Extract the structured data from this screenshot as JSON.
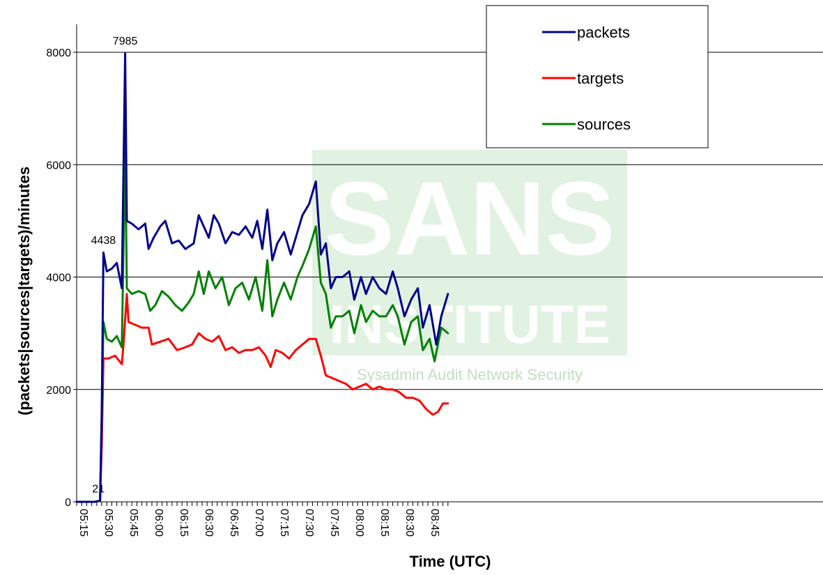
{
  "chart_data": {
    "type": "line",
    "title": "",
    "xlabel": "Time (UTC)",
    "ylabel": "(packets|sources|targets)/minutes",
    "ylim": [
      0,
      8000
    ],
    "yticks": [
      0,
      2000,
      4000,
      6000,
      8000
    ],
    "xlim": [
      "05:15",
      "08:57"
    ],
    "xticks": [
      "05:15",
      "05:30",
      "05:45",
      "06:00",
      "06:15",
      "06:30",
      "06:45",
      "07:00",
      "07:15",
      "07:30",
      "07:45",
      "08:00",
      "08:15",
      "08:30",
      "08:45"
    ],
    "grid": "horizontal",
    "legend_position": "top-right",
    "series": [
      {
        "name": "packets",
        "color": "#00008b",
        "points": [
          [
            "05:15",
            0
          ],
          [
            "05:26",
            0
          ],
          [
            "05:29",
            21
          ],
          [
            "05:30",
            1600
          ],
          [
            "05:31",
            4438
          ],
          [
            "05:33",
            4100
          ],
          [
            "05:36",
            4150
          ],
          [
            "05:39",
            4250
          ],
          [
            "05:42",
            3800
          ],
          [
            "05:44",
            7985
          ],
          [
            "05:45",
            5000
          ],
          [
            "05:48",
            4950
          ],
          [
            "05:52",
            4850
          ],
          [
            "05:56",
            4950
          ],
          [
            "05:58",
            4500
          ],
          [
            "06:01",
            4700
          ],
          [
            "06:05",
            4900
          ],
          [
            "06:08",
            5000
          ],
          [
            "06:12",
            4600
          ],
          [
            "06:16",
            4650
          ],
          [
            "06:20",
            4500
          ],
          [
            "06:25",
            4600
          ],
          [
            "06:28",
            5100
          ],
          [
            "06:31",
            4900
          ],
          [
            "06:34",
            4700
          ],
          [
            "06:37",
            5100
          ],
          [
            "06:40",
            4950
          ],
          [
            "06:44",
            4600
          ],
          [
            "06:48",
            4800
          ],
          [
            "06:52",
            4750
          ],
          [
            "06:56",
            4900
          ],
          [
            "07:00",
            4700
          ],
          [
            "07:03",
            5000
          ],
          [
            "07:06",
            4500
          ],
          [
            "07:09",
            5200
          ],
          [
            "07:12",
            4300
          ],
          [
            "07:15",
            4600
          ],
          [
            "07:19",
            4800
          ],
          [
            "07:23",
            4400
          ],
          [
            "07:27",
            4800
          ],
          [
            "07:30",
            5100
          ],
          [
            "07:34",
            5300
          ],
          [
            "07:38",
            5700
          ],
          [
            "07:41",
            4400
          ],
          [
            "07:44",
            4600
          ],
          [
            "07:47",
            3800
          ],
          [
            "07:50",
            4000
          ],
          [
            "07:54",
            4000
          ],
          [
            "07:58",
            4100
          ],
          [
            "08:01",
            3600
          ],
          [
            "08:05",
            4000
          ],
          [
            "08:08",
            3700
          ],
          [
            "08:12",
            4000
          ],
          [
            "08:16",
            3800
          ],
          [
            "08:20",
            3700
          ],
          [
            "08:24",
            4100
          ],
          [
            "08:27",
            3800
          ],
          [
            "08:31",
            3300
          ],
          [
            "08:35",
            3600
          ],
          [
            "08:39",
            3800
          ],
          [
            "08:42",
            3100
          ],
          [
            "08:46",
            3500
          ],
          [
            "08:50",
            2800
          ],
          [
            "08:53",
            3300
          ],
          [
            "08:57",
            3700
          ]
        ]
      },
      {
        "name": "targets",
        "color": "#ff0000",
        "points": [
          [
            "05:15",
            0
          ],
          [
            "05:26",
            0
          ],
          [
            "05:29",
            20
          ],
          [
            "05:30",
            1000
          ],
          [
            "05:31",
            2550
          ],
          [
            "05:34",
            2550
          ],
          [
            "05:38",
            2600
          ],
          [
            "05:42",
            2450
          ],
          [
            "05:43",
            2800
          ],
          [
            "05:45",
            3700
          ],
          [
            "05:46",
            3200
          ],
          [
            "05:50",
            3150
          ],
          [
            "05:54",
            3100
          ],
          [
            "05:58",
            3100
          ],
          [
            "06:00",
            2800
          ],
          [
            "06:05",
            2850
          ],
          [
            "06:10",
            2900
          ],
          [
            "06:15",
            2700
          ],
          [
            "06:20",
            2750
          ],
          [
            "06:24",
            2800
          ],
          [
            "06:28",
            3000
          ],
          [
            "06:32",
            2900
          ],
          [
            "06:36",
            2850
          ],
          [
            "06:40",
            2950
          ],
          [
            "06:44",
            2700
          ],
          [
            "06:48",
            2750
          ],
          [
            "06:52",
            2650
          ],
          [
            "06:56",
            2700
          ],
          [
            "07:00",
            2700
          ],
          [
            "07:04",
            2750
          ],
          [
            "07:08",
            2600
          ],
          [
            "07:11",
            2400
          ],
          [
            "07:14",
            2700
          ],
          [
            "07:18",
            2650
          ],
          [
            "07:22",
            2550
          ],
          [
            "07:26",
            2700
          ],
          [
            "07:30",
            2800
          ],
          [
            "07:34",
            2900
          ],
          [
            "07:38",
            2900
          ],
          [
            "07:41",
            2600
          ],
          [
            "07:44",
            2250
          ],
          [
            "07:48",
            2200
          ],
          [
            "07:52",
            2150
          ],
          [
            "07:56",
            2100
          ],
          [
            "08:00",
            2000
          ],
          [
            "08:04",
            2050
          ],
          [
            "08:08",
            2100
          ],
          [
            "08:12",
            2000
          ],
          [
            "08:16",
            2050
          ],
          [
            "08:20",
            2000
          ],
          [
            "08:24",
            2000
          ],
          [
            "08:28",
            1950
          ],
          [
            "08:32",
            1850
          ],
          [
            "08:36",
            1850
          ],
          [
            "08:40",
            1800
          ],
          [
            "08:44",
            1650
          ],
          [
            "08:48",
            1550
          ],
          [
            "08:51",
            1600
          ],
          [
            "08:54",
            1750
          ],
          [
            "08:57",
            1750
          ]
        ]
      },
      {
        "name": "sources",
        "color": "#008000",
        "points": [
          [
            "05:15",
            0
          ],
          [
            "05:26",
            0
          ],
          [
            "05:29",
            20
          ],
          [
            "05:30",
            1500
          ],
          [
            "05:31",
            3200
          ],
          [
            "05:33",
            2900
          ],
          [
            "05:36",
            2850
          ],
          [
            "05:39",
            2950
          ],
          [
            "05:42",
            2750
          ],
          [
            "05:43",
            4500
          ],
          [
            "05:44",
            6500
          ],
          [
            "05:45",
            3800
          ],
          [
            "05:48",
            3700
          ],
          [
            "05:52",
            3750
          ],
          [
            "05:56",
            3700
          ],
          [
            "05:59",
            3400
          ],
          [
            "06:02",
            3500
          ],
          [
            "06:06",
            3750
          ],
          [
            "06:10",
            3650
          ],
          [
            "06:14",
            3500
          ],
          [
            "06:18",
            3400
          ],
          [
            "06:22",
            3550
          ],
          [
            "06:25",
            3700
          ],
          [
            "06:28",
            4100
          ],
          [
            "06:31",
            3700
          ],
          [
            "06:34",
            4100
          ],
          [
            "06:38",
            3800
          ],
          [
            "06:42",
            4000
          ],
          [
            "06:46",
            3500
          ],
          [
            "06:50",
            3800
          ],
          [
            "06:54",
            3900
          ],
          [
            "06:58",
            3600
          ],
          [
            "07:02",
            4000
          ],
          [
            "07:06",
            3400
          ],
          [
            "07:09",
            4300
          ],
          [
            "07:12",
            3300
          ],
          [
            "07:15",
            3600
          ],
          [
            "07:19",
            3900
          ],
          [
            "07:23",
            3600
          ],
          [
            "07:27",
            4000
          ],
          [
            "07:30",
            4200
          ],
          [
            "07:34",
            4500
          ],
          [
            "07:38",
            4900
          ],
          [
            "07:41",
            3900
          ],
          [
            "07:44",
            3700
          ],
          [
            "07:47",
            3100
          ],
          [
            "07:50",
            3300
          ],
          [
            "07:54",
            3300
          ],
          [
            "07:58",
            3400
          ],
          [
            "08:01",
            3000
          ],
          [
            "08:05",
            3500
          ],
          [
            "08:08",
            3200
          ],
          [
            "08:12",
            3400
          ],
          [
            "08:16",
            3300
          ],
          [
            "08:20",
            3300
          ],
          [
            "08:24",
            3500
          ],
          [
            "08:27",
            3300
          ],
          [
            "08:31",
            2800
          ],
          [
            "08:35",
            3200
          ],
          [
            "08:39",
            3300
          ],
          [
            "08:42",
            2700
          ],
          [
            "08:46",
            2900
          ],
          [
            "08:49",
            2500
          ],
          [
            "08:53",
            3100
          ],
          [
            "08:57",
            3000
          ]
        ]
      }
    ],
    "annotations": [
      {
        "text": "21",
        "x": "05:28",
        "y": 21
      },
      {
        "text": "4438",
        "x": "05:31",
        "y": 4438
      },
      {
        "text": "7985",
        "x": "05:44",
        "y": 7985
      }
    ],
    "watermark": {
      "line1": "SANS",
      "line2": "INSTITUTE",
      "line3": "Sysadmin Audit Network Security"
    }
  }
}
